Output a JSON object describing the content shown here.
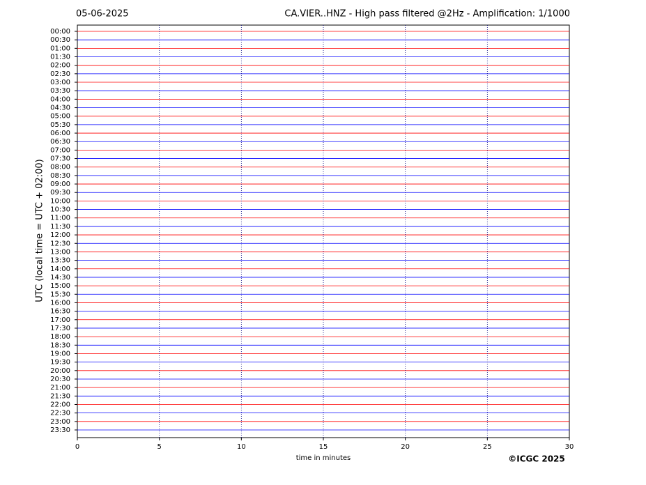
{
  "chart_data": {
    "type": "helicorder",
    "date": "05-06-2025",
    "title": "CA.VIER..HNZ - High pass filtered @2Hz - Amplification: 1/1000",
    "ylabel": "UTC (local time = UTC + 02:00)",
    "xlabel": "time in minutes",
    "copyright": "©ICGC 2025",
    "categories": [
      "00:00",
      "00:30",
      "01:00",
      "01:30",
      "02:00",
      "02:30",
      "03:00",
      "03:30",
      "04:00",
      "04:30",
      "05:00",
      "05:30",
      "06:00",
      "06:30",
      "07:00",
      "07:30",
      "08:00",
      "08:30",
      "09:00",
      "09:30",
      "10:00",
      "10:30",
      "11:00",
      "11:30",
      "12:00",
      "12:30",
      "13:00",
      "13:30",
      "14:00",
      "14:30",
      "15:00",
      "15:30",
      "16:00",
      "16:30",
      "17:00",
      "17:30",
      "18:00",
      "18:30",
      "19:00",
      "19:30",
      "20:00",
      "20:30",
      "21:00",
      "21:30",
      "22:00",
      "22:30",
      "23:00",
      "23:30"
    ],
    "trace_colors": [
      "#ff0000",
      "#0000ff"
    ],
    "xlim": [
      0,
      30
    ],
    "xticks": [
      0,
      5,
      10,
      15,
      20,
      25,
      30
    ],
    "grid": true
  }
}
